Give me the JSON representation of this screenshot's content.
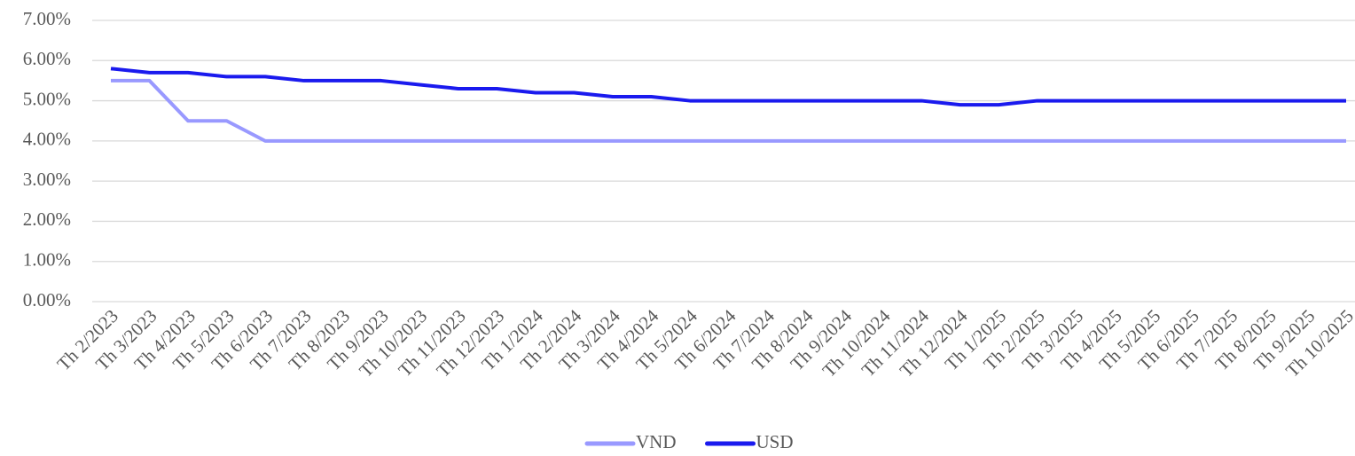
{
  "chart_data": {
    "type": "line",
    "categories": [
      "Th 2/2023",
      "Th 3/2023",
      "Th 4/2023",
      "Th 5/2023",
      "Th 6/2023",
      "Th 7/2023",
      "Th 8/2023",
      "Th 9/2023",
      "Th 10/2023",
      "Th 11/2023",
      "Th 12/2023",
      "Th 1/2024",
      "Th 2/2024",
      "Th 3/2024",
      "Th 4/2024",
      "Th 5/2024",
      "Th 6/2024",
      "Th 7/2024",
      "Th 8/2024",
      "Th 9/2024",
      "Th 10/2024",
      "Th 11/2024",
      "Th 12/2024",
      "Th 1/2025",
      "Th 2/2025",
      "Th 3/2025",
      "Th 4/2025",
      "Th 5/2025",
      "Th 6/2025",
      "Th 7/2025",
      "Th 8/2025",
      "Th 9/2025",
      "Th 10/2025"
    ],
    "series": [
      {
        "name": "VND",
        "color": "#9999ff",
        "values": [
          5.5,
          5.5,
          4.5,
          4.5,
          4.0,
          4.0,
          4.0,
          4.0,
          4.0,
          4.0,
          4.0,
          4.0,
          4.0,
          4.0,
          4.0,
          4.0,
          4.0,
          4.0,
          4.0,
          4.0,
          4.0,
          4.0,
          4.0,
          4.0,
          4.0,
          4.0,
          4.0,
          4.0,
          4.0,
          4.0,
          4.0,
          4.0,
          4.0
        ]
      },
      {
        "name": "USD",
        "color": "#1a1aee",
        "values": [
          5.8,
          5.7,
          5.7,
          5.6,
          5.6,
          5.5,
          5.5,
          5.5,
          5.4,
          5.3,
          5.3,
          5.2,
          5.2,
          5.1,
          5.1,
          5.0,
          5.0,
          5.0,
          5.0,
          5.0,
          5.0,
          5.0,
          4.9,
          4.9,
          5.0,
          5.0,
          5.0,
          5.0,
          5.0,
          5.0,
          5.0,
          5.0,
          5.0
        ]
      }
    ],
    "ylim": [
      0,
      7
    ],
    "yticks": [
      {
        "value": 0,
        "label": "0.00%"
      },
      {
        "value": 1,
        "label": "1.00%"
      },
      {
        "value": 2,
        "label": "2.00%"
      },
      {
        "value": 3,
        "label": "3.00%"
      },
      {
        "value": 4,
        "label": "4.00%"
      },
      {
        "value": 5,
        "label": "5.00%"
      },
      {
        "value": 6,
        "label": "6.00%"
      },
      {
        "value": 7,
        "label": "7.00%"
      }
    ],
    "grid": true,
    "legend": "bottom"
  }
}
